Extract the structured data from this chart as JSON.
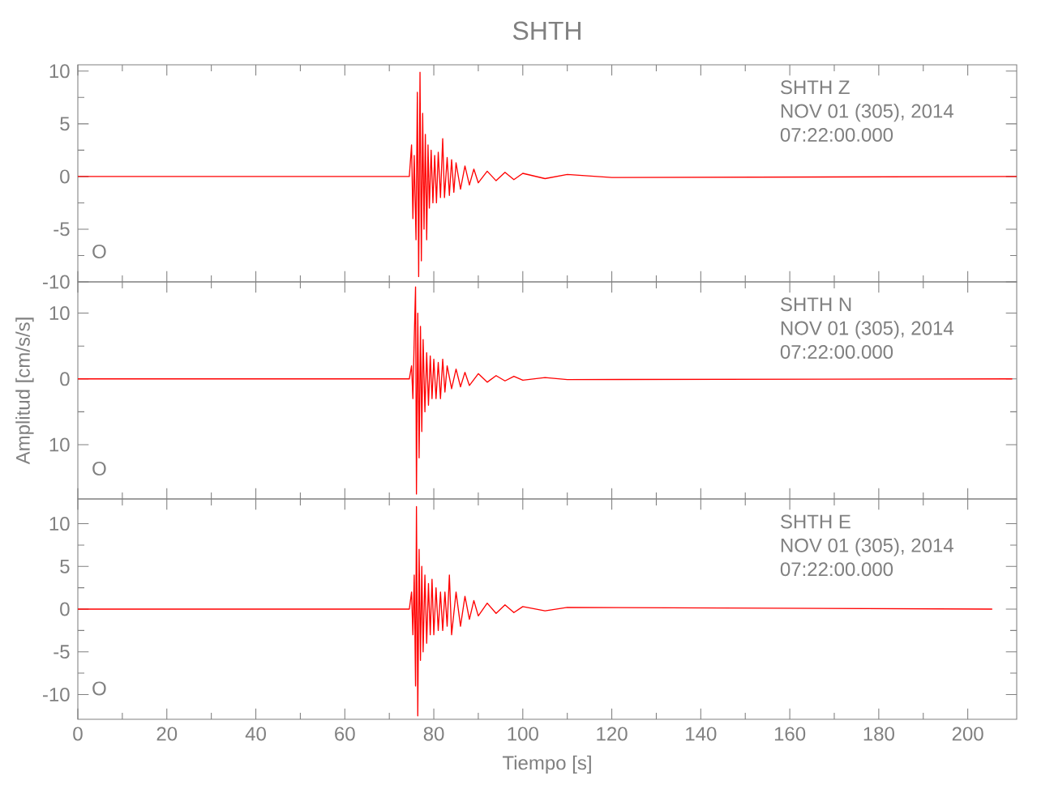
{
  "chart_data": [
    {
      "type": "line",
      "title": "SHTH",
      "color": "#ff0000",
      "marker": "none",
      "line_style": "solid",
      "tick_labels": "y",
      "annotations": [
        "SHTH    Z",
        "NOV 01 (305), 2014",
        "07:22:00.000",
        "O"
      ],
      "xlim": [
        0,
        211
      ],
      "ylim": [
        -10,
        10.6
      ],
      "xticks": [
        0,
        20,
        40,
        60,
        80,
        100,
        120,
        140,
        160,
        180,
        200
      ],
      "yticks": [
        -10,
        -5,
        0,
        5,
        10
      ],
      "x": [
        0,
        74.5,
        75,
        75.3,
        75.6,
        76,
        76.3,
        76.6,
        76.9,
        77.2,
        77.5,
        77.8,
        78.1,
        78.4,
        78.7,
        79,
        79.4,
        79.8,
        80.2,
        80.6,
        81,
        81.5,
        82,
        82.4,
        83,
        83.5,
        84,
        84.5,
        85,
        86,
        87,
        88,
        89,
        90,
        92,
        94,
        96,
        98,
        100,
        105,
        110,
        120,
        211
      ],
      "values": [
        0,
        0,
        3,
        -4,
        2,
        -6,
        8,
        -9.5,
        9.9,
        -8,
        6,
        -5,
        4,
        -6,
        3,
        -3,
        2.5,
        -2.5,
        2,
        -2.5,
        2.3,
        -2,
        3.6,
        -2,
        1.8,
        -1.8,
        1.6,
        -1.5,
        1.3,
        -1.2,
        1,
        -0.8,
        0.7,
        -0.6,
        0.5,
        -0.4,
        0.4,
        -0.3,
        0.3,
        -0.2,
        0.2,
        -0.1,
        0
      ]
    },
    {
      "type": "line",
      "ylabel": "Amplitud  [cm/s/s]",
      "color": "#ff0000",
      "marker": "none",
      "line_style": "solid",
      "tick_labels": "y",
      "annotations": [
        "SHTH    N",
        "NOV 01 (305), 2014",
        "07:22:00.000",
        "O"
      ],
      "xlim": [
        0,
        211
      ],
      "ylim": [
        -18.25,
        14.75
      ],
      "xticks": [
        0,
        20,
        40,
        60,
        80,
        100,
        120,
        140,
        160,
        180,
        200
      ],
      "yticks": [
        {
          "value": -10,
          "label": "10"
        },
        0,
        10
      ],
      "x": [
        0,
        74.5,
        75,
        75.3,
        75.6,
        75.9,
        76.1,
        76.4,
        76.7,
        77,
        77.3,
        77.6,
        78,
        78.4,
        78.8,
        79.2,
        79.6,
        80,
        80.5,
        81,
        81.5,
        82,
        82.5,
        83,
        84,
        85,
        86,
        87,
        88,
        90,
        92,
        94,
        96,
        98,
        100,
        105,
        110,
        210
      ],
      "values": [
        0,
        0,
        2,
        -3,
        6,
        14,
        -17.5,
        10,
        -12,
        8,
        -8,
        6,
        -5,
        4,
        -4,
        3.5,
        -3,
        3,
        -3,
        2.5,
        -3,
        3,
        -2,
        2,
        -1.5,
        1.5,
        -1.2,
        1,
        -1,
        0.8,
        -0.5,
        0.5,
        -0.3,
        0.4,
        -0.2,
        0.2,
        -0.1,
        0
      ]
    },
    {
      "type": "line",
      "xlabel": "Tiempo  [s]",
      "color": "#ff0000",
      "marker": "none",
      "line_style": "solid",
      "annotations": [
        "SHTH    E",
        "NOV 01 (305), 2014",
        "07:22:00.000",
        "O"
      ],
      "xlim": [
        0,
        211
      ],
      "ylim": [
        -12.9,
        12.9
      ],
      "xticks": [
        0,
        20,
        40,
        60,
        80,
        100,
        120,
        140,
        160,
        180,
        200
      ],
      "yticks": [
        -10,
        -5,
        0,
        5,
        10
      ],
      "x": [
        0,
        74.5,
        75,
        75.3,
        75.6,
        75.9,
        76.1,
        76.4,
        76.7,
        77,
        77.3,
        77.6,
        78,
        78.4,
        78.8,
        79.2,
        79.6,
        80,
        80.5,
        81,
        81.5,
        82,
        82.5,
        83,
        83.5,
        84,
        85,
        86,
        87,
        88,
        89,
        90,
        92,
        94,
        96,
        98,
        100,
        105,
        110,
        205.5
      ],
      "values": [
        0,
        0,
        2,
        -3,
        4,
        -9,
        12,
        -12.5,
        7,
        -6,
        5,
        -5,
        4,
        -4,
        3,
        -3,
        3.5,
        -3,
        2.5,
        -2.5,
        2,
        -2.5,
        2,
        -2,
        4,
        -3,
        2,
        -2,
        1.5,
        -1.2,
        1,
        -0.8,
        0.7,
        -0.5,
        0.5,
        -0.4,
        0.3,
        -0.2,
        0.2,
        0
      ]
    }
  ]
}
